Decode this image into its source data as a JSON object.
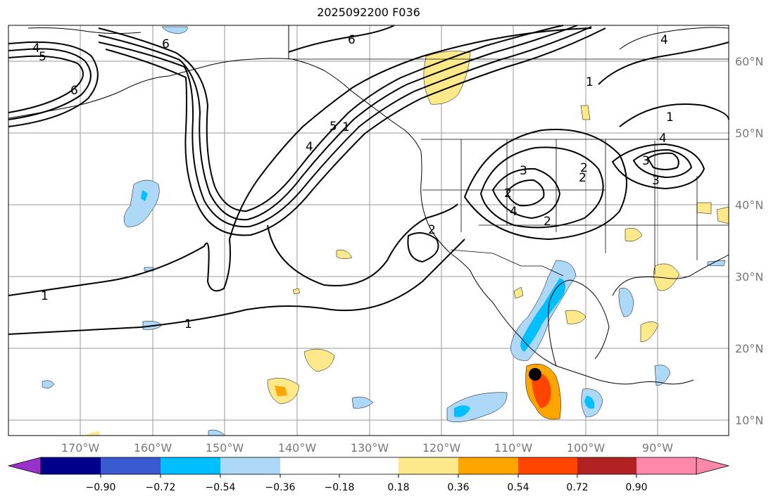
{
  "title": "2025092200 F036",
  "map": {
    "lon_labels": [
      "170°W",
      "160°W",
      "150°W",
      "140°W",
      "130°W",
      "120°W",
      "110°W",
      "100°W",
      "90°W"
    ],
    "lat_labels": [
      "60°N",
      "50°N",
      "40°N",
      "30°N",
      "20°N",
      "10°N"
    ],
    "contour_labels": [
      "4",
      "5",
      "6",
      "6",
      "6",
      "5",
      "4",
      "1",
      "1",
      "1",
      "4",
      "3",
      "2",
      "2",
      "2",
      "2",
      "3",
      "4",
      "2",
      "3",
      "1",
      "4",
      "1"
    ],
    "marker": "current-position-dot"
  },
  "colorbar": {
    "ticks": [
      "−0.90",
      "−0.72",
      "−0.54",
      "−0.36",
      "−0.18",
      "0.18",
      "0.36",
      "0.54",
      "0.72",
      "0.90"
    ],
    "colors": [
      "#9932cc",
      "#00008b",
      "#3a5bcf",
      "#00bfff",
      "#add8f8",
      "#ffffff",
      "#fde98a",
      "#ffa500",
      "#ff4500",
      "#b22222",
      "#ff88aa"
    ]
  }
}
